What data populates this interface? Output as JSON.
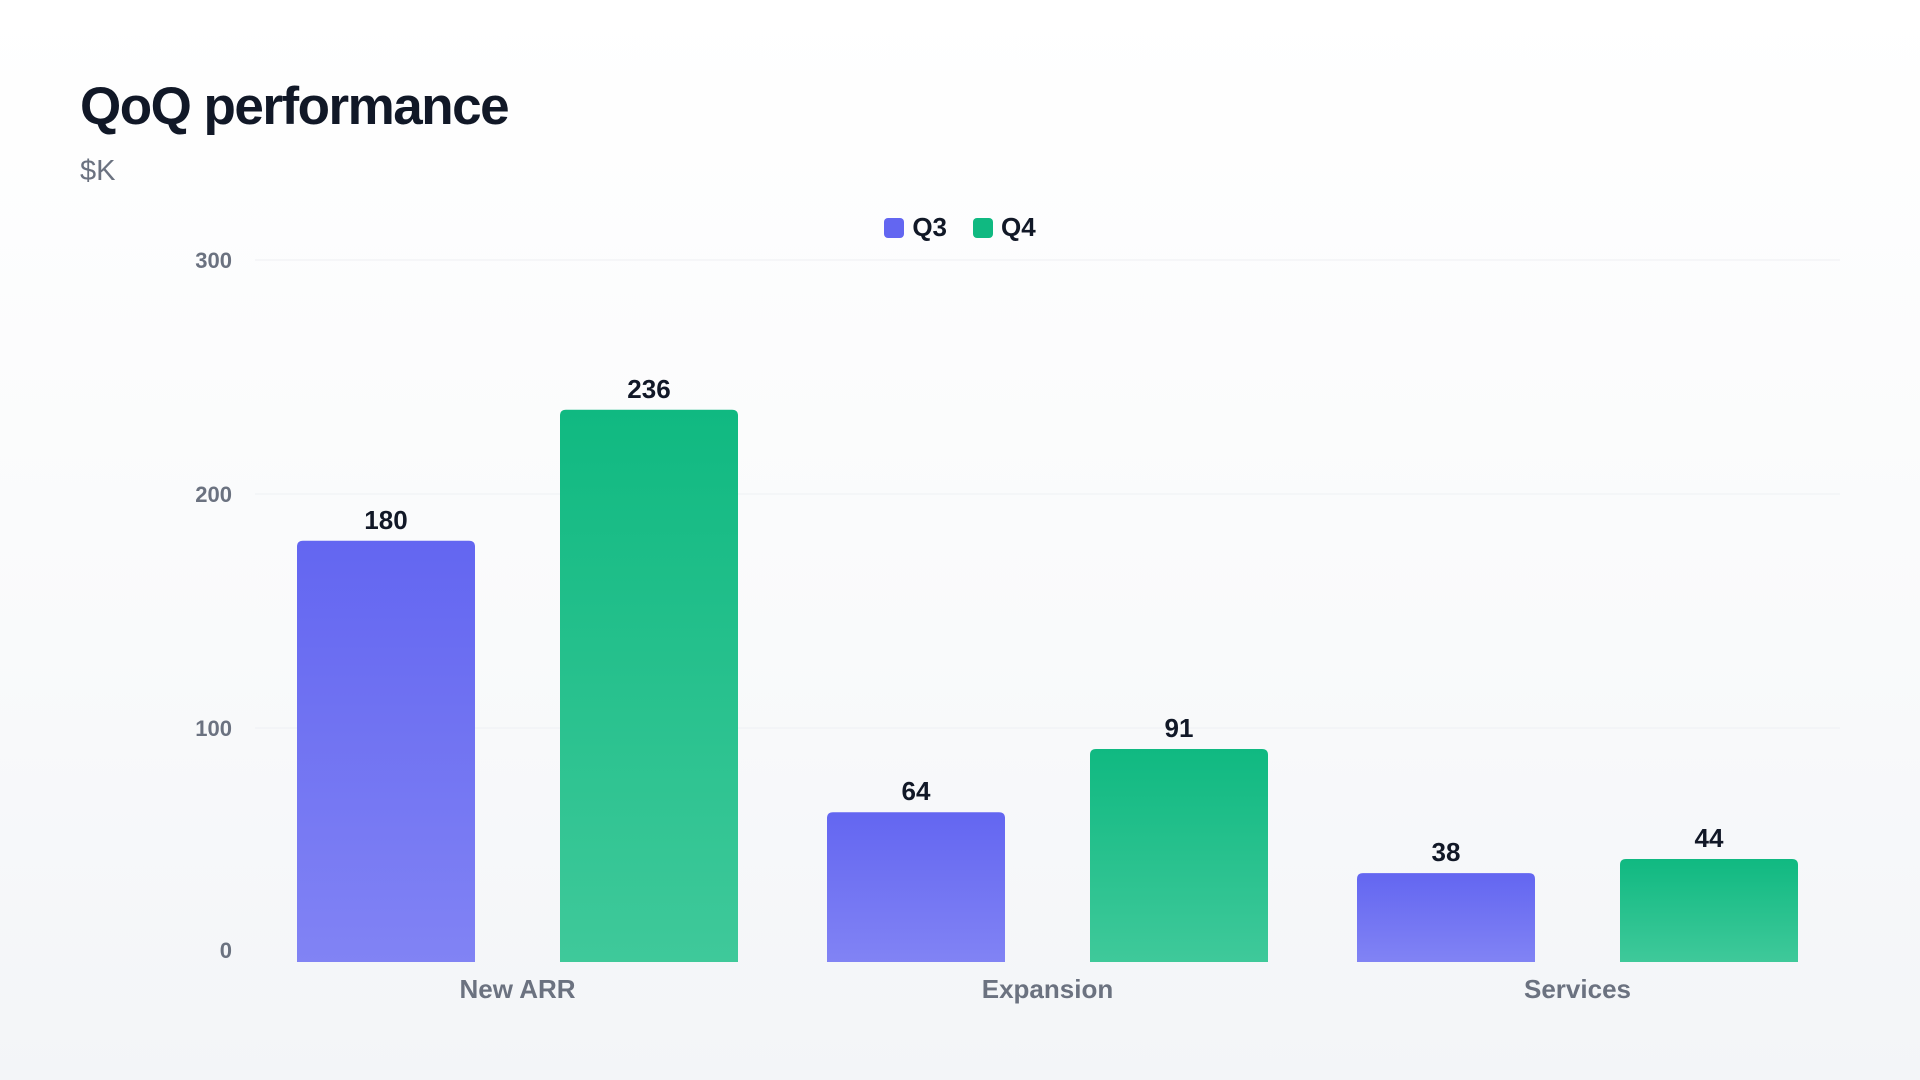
{
  "chart_data": {
    "type": "bar",
    "title": "QoQ performance",
    "subtitle": "$K",
    "categories": [
      "New ARR",
      "Expansion",
      "Services"
    ],
    "series": [
      {
        "name": "Q3",
        "values": [
          180,
          64,
          38
        ],
        "color": "#6366f1",
        "color_light": "#8183f4"
      },
      {
        "name": "Q4",
        "values": [
          236,
          91,
          44
        ],
        "color": "#10b981",
        "color_light": "#3fc99a"
      }
    ],
    "ylim": [
      0,
      300
    ],
    "yticks": [
      0,
      100,
      200,
      300
    ],
    "grid": true,
    "legend_position": "top-center",
    "data_labels": true
  },
  "colors": {
    "title": "#111827",
    "subtitle": "#6b7280",
    "axis_text": "#6b7280",
    "grid": "#eef0f3"
  }
}
